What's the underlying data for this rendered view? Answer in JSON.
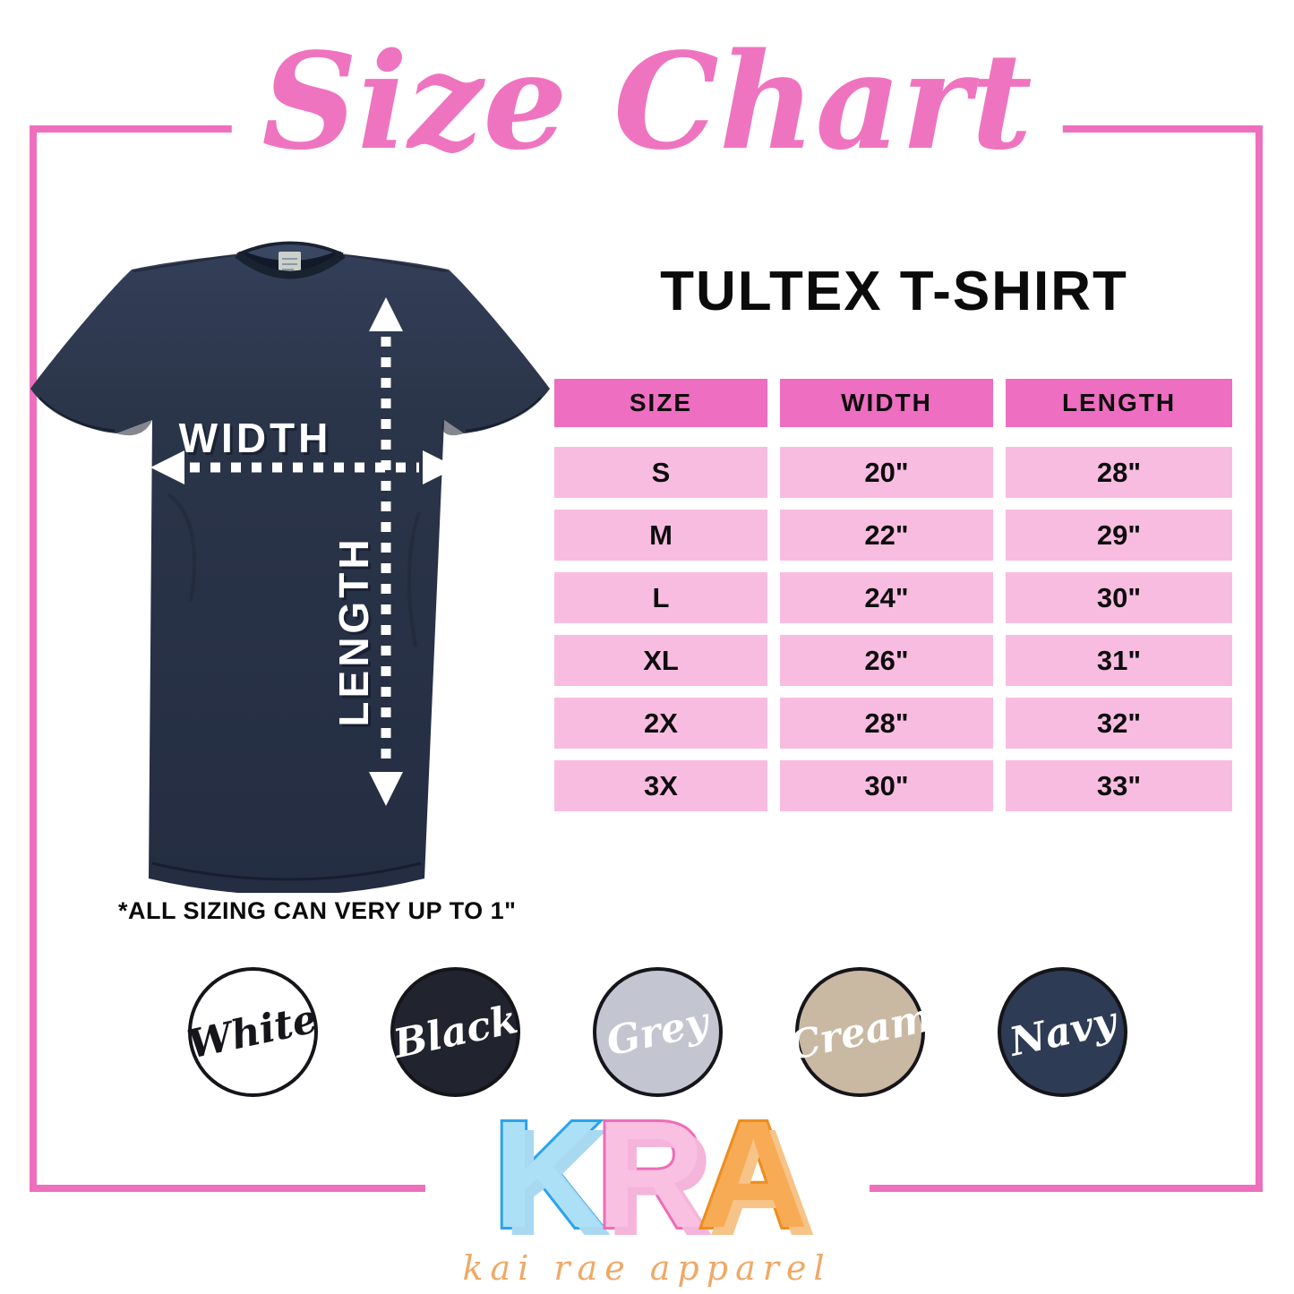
{
  "header": {
    "title": "Size Chart",
    "title_color": "#ef74c0"
  },
  "frame": {
    "border_color": "#ee6fbe"
  },
  "product": {
    "name": "TULTEX T-SHIRT"
  },
  "diagram": {
    "width_label": "WIDTH",
    "length_label": "LENGTH",
    "shirt_color_name": "Navy",
    "shirt_color_hex": "#2b3447"
  },
  "size_table": {
    "headers": [
      "SIZE",
      "WIDTH",
      "LENGTH"
    ],
    "rows": [
      [
        "S",
        "20\"",
        "28\""
      ],
      [
        "M",
        "22\"",
        "29\""
      ],
      [
        "L",
        "24\"",
        "30\""
      ],
      [
        "XL",
        "26\"",
        "31\""
      ],
      [
        "2X",
        "28\"",
        "32\""
      ],
      [
        "3X",
        "30\"",
        "33\""
      ]
    ],
    "header_bg": "#ee6ec1",
    "row_bg": "#f9bce1"
  },
  "note": "*ALL SIZING CAN VERY UP TO 1\"",
  "swatches": [
    {
      "name": "White",
      "bg": "#ffffff",
      "label_color": "#15151a"
    },
    {
      "name": "Black",
      "bg": "#21242f",
      "label_color": "#ffffff"
    },
    {
      "name": "Grey",
      "bg": "#c3c5d0",
      "label_color": "#ffffff"
    },
    {
      "name": "Cream",
      "bg": "#c9b8a2",
      "label_color": "#ffffff"
    },
    {
      "name": "Navy",
      "bg": "#2d3b55",
      "label_color": "#ffffff"
    }
  ],
  "brand": {
    "letters": [
      {
        "char": "K",
        "fill": "#ace0f7",
        "outline": "#2aa3ec",
        "shadow": "#a8d9f1"
      },
      {
        "char": "R",
        "fill": "#f9c0e2",
        "outline": "#ee6cb8",
        "shadow": "#f5b4da"
      },
      {
        "char": "A",
        "fill": "#f8ab55",
        "outline": "#ee8d1e",
        "shadow": "#f6c488"
      }
    ],
    "tagline": "kai rae apparel",
    "tagline_color": "#f0a865"
  },
  "chart_data": {
    "type": "table",
    "title": "TULTEX T-SHIRT",
    "columns": [
      "SIZE",
      "WIDTH",
      "LENGTH"
    ],
    "rows": [
      [
        "S",
        "20\"",
        "28\""
      ],
      [
        "M",
        "22\"",
        "29\""
      ],
      [
        "L",
        "24\"",
        "30\""
      ],
      [
        "XL",
        "26\"",
        "31\""
      ],
      [
        "2X",
        "28\"",
        "32\""
      ],
      [
        "3X",
        "30\"",
        "33\""
      ]
    ]
  }
}
